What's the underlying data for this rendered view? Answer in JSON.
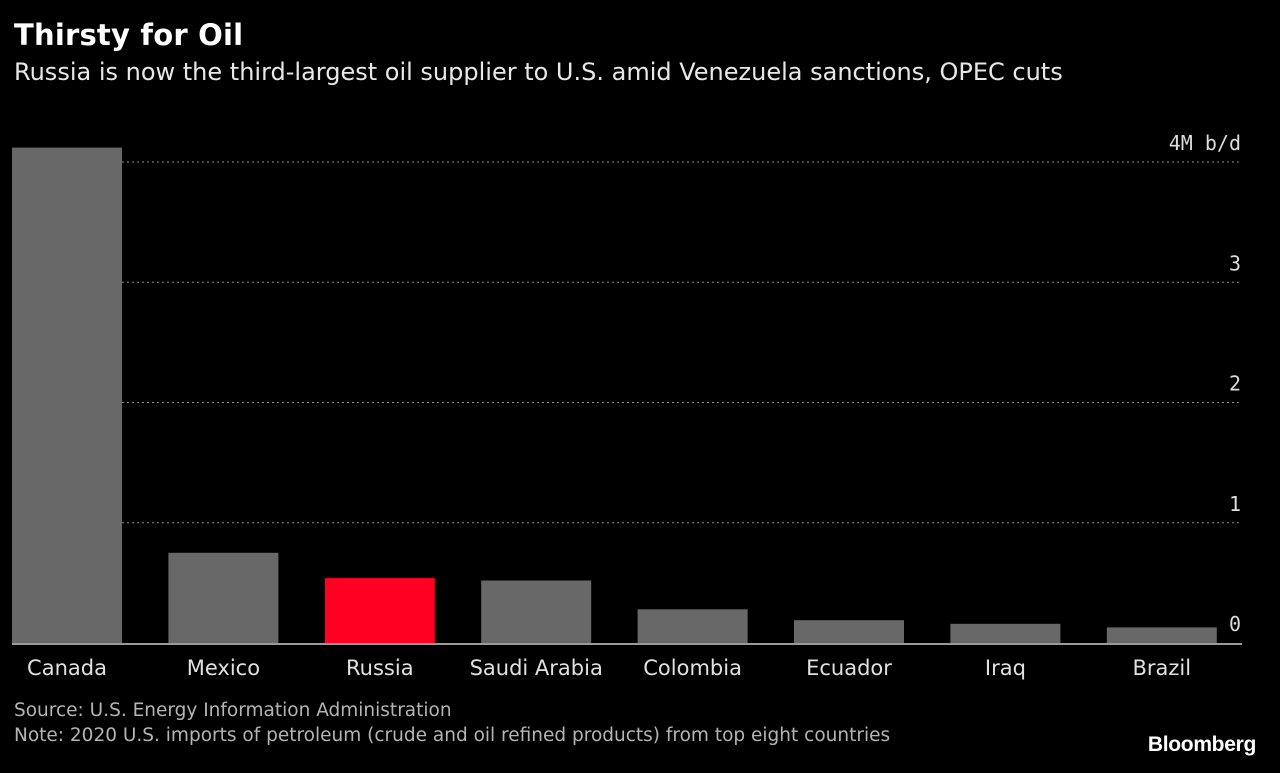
{
  "header": {
    "title": "Thirsty for Oil",
    "subtitle": "Russia is now the third-largest oil supplier to U.S. amid Venezuela sanctions, OPEC cuts"
  },
  "footer": {
    "source": "Source: U.S. Energy Information Administration",
    "note": "Note: 2020 U.S. imports of petroleum (crude and oil refined products) from top eight countries",
    "brand": "Bloomberg"
  },
  "chart_data": {
    "type": "bar",
    "title": "Thirsty for Oil",
    "subtitle": "Russia is now the third-largest oil supplier to U.S. amid Venezuela sanctions, OPEC cuts",
    "categories": [
      "Canada",
      "Mexico",
      "Russia",
      "Saudi Arabia",
      "Colombia",
      "Ecuador",
      "Iraq",
      "Brazil"
    ],
    "values": [
      4.12,
      0.75,
      0.54,
      0.52,
      0.28,
      0.19,
      0.16,
      0.13
    ],
    "unit": "M b/d",
    "ylim": [
      0,
      4
    ],
    "yticks": [
      {
        "value": 0,
        "label": "0"
      },
      {
        "value": 1,
        "label": "1"
      },
      {
        "value": 2,
        "label": "2"
      },
      {
        "value": 3,
        "label": "3"
      },
      {
        "value": 4,
        "label": "4M b/d"
      }
    ],
    "grid": true,
    "axis_side": "right",
    "colors": {
      "default_bar": "#686868",
      "highlight_bar": "#ff0022",
      "gridline": "#8c8c8c",
      "baseline": "#9a9a9a",
      "tick_label": "#dcdcdc",
      "category_label": "#e0e0e0"
    },
    "highlight": "Russia"
  }
}
